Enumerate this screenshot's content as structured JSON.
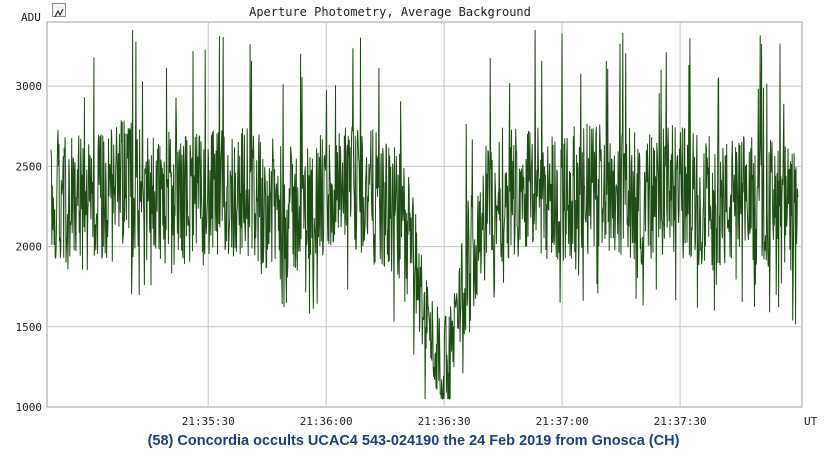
{
  "toolbar": {
    "icon": "chart-options-icon"
  },
  "chart_data": {
    "type": "line",
    "title": "Aperture Photometry, Average Background",
    "ylabel": "ADU",
    "xlabel": "UT",
    "ylim": [
      1000,
      3400
    ],
    "xlim": [
      "21:34:49",
      "21:38:01"
    ],
    "yticks": [
      "1000",
      "1500",
      "2000",
      "2500",
      "3000"
    ],
    "xticks": [
      "21:35:30",
      "21:36:00",
      "21:36:30",
      "21:37:00",
      "21:37:30"
    ],
    "grid": true,
    "series": [
      {
        "color": "#1e4d14",
        "x": [
          "21:34:50",
          "21:35:00",
          "21:35:10",
          "21:35:20",
          "21:35:30",
          "21:35:40",
          "21:35:50",
          "21:36:00",
          "21:36:10",
          "21:36:20",
          "21:36:25",
          "21:36:28",
          "21:36:31",
          "21:36:34",
          "21:36:40",
          "21:36:50",
          "21:37:00",
          "21:37:10",
          "21:37:20",
          "21:37:30",
          "21:37:40",
          "21:37:50",
          "21:38:00"
        ],
        "values": [
          2350,
          2250,
          2400,
          2300,
          2300,
          2350,
          2200,
          2300,
          2350,
          2150,
          1600,
          1350,
          1250,
          1700,
          2250,
          2400,
          2300,
          2400,
          2300,
          2350,
          2250,
          2300,
          2200
        ]
      }
    ],
    "caption": "(58) Concordia occults UCAC4 543-024190 the 24 Feb 2019 from Gnosca (CH)"
  }
}
